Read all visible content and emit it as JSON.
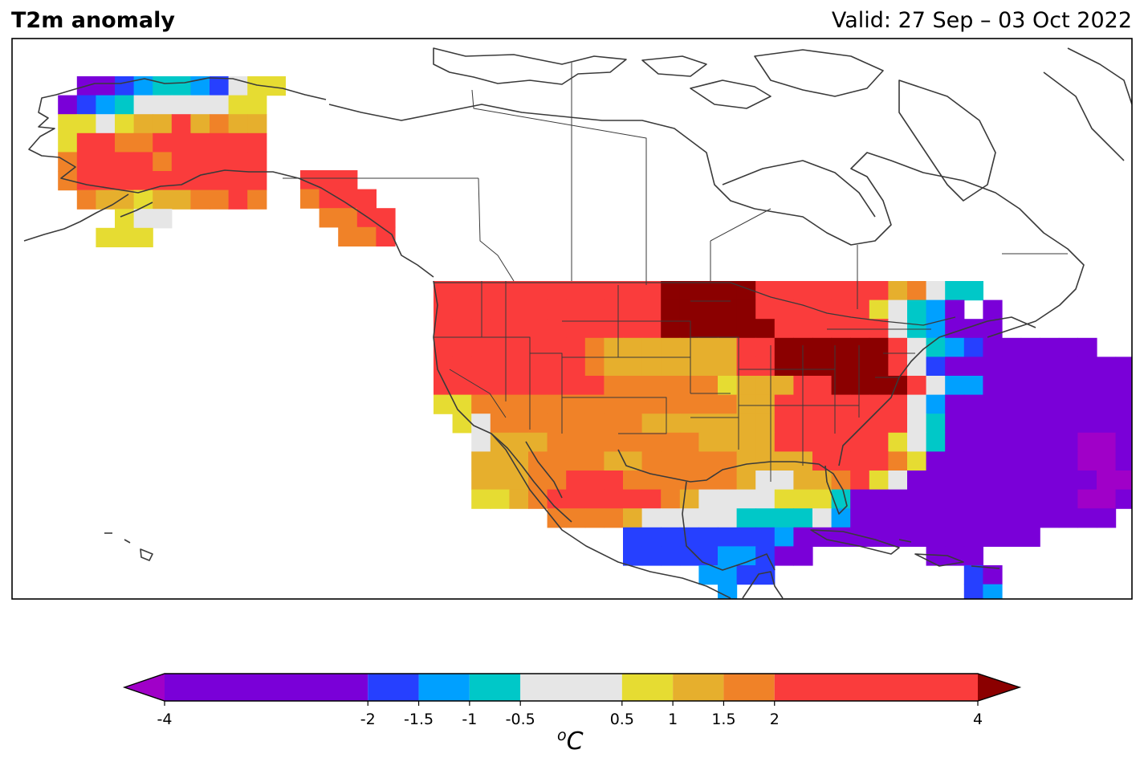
{
  "title": "T2m anomaly",
  "valid": "Valid: 27 Sep – 03 Oct 2022",
  "colorbar": {
    "levels": [
      "-4",
      "-2",
      "-1.5",
      "-1",
      "-0.5",
      "0.5",
      "1",
      "1.5",
      "2",
      "4"
    ],
    "colors": [
      "#7a00d8",
      "#2640ff",
      "#00a0ff",
      "#00c8c8",
      "#e6e6e6",
      "#e6dc32",
      "#e6af2d",
      "#f08228",
      "#fa3c3c"
    ],
    "under_color": "#a000c8",
    "over_color": "#8b0000",
    "unit_symbol": "o",
    "unit_letter": "C"
  },
  "colors": {
    "P": "#7a00d8",
    "M": "#a000c8",
    "B": "#2640ff",
    "L": "#00a0ff",
    "C": "#00c8c8",
    "G": "#e6e6e6",
    "Y": "#e6dc32",
    "O": "#e6af2d",
    "N": "#f08228",
    "R": "#fa3c3c",
    "D": "#8b0000"
  },
  "chart_data": {
    "type": "heatmap",
    "variable": "2m temperature anomaly",
    "units": "°C",
    "categories": [
      {
        "code": "M",
        "range": "< -4"
      },
      {
        "code": "P",
        "range": "-4 to -2"
      },
      {
        "code": "B",
        "range": "-2 to -1.5"
      },
      {
        "code": "L",
        "range": "-1.5 to -1"
      },
      {
        "code": "C",
        "range": "-1 to -0.5"
      },
      {
        "code": "G",
        "range": "-0.5 to 0.5"
      },
      {
        "code": "Y",
        "range": "0.5 to 1"
      },
      {
        "code": "O",
        "range": "1 to 1.5"
      },
      {
        "code": "N",
        "range": "1.5 to 2"
      },
      {
        "code": "R",
        "range": "2 to 4"
      },
      {
        "code": "D",
        "range": "> 4"
      }
    ],
    "regions": [
      {
        "name": "Alaska",
        "rows": [
          "...PPBLCCLBGYY",
          "..PBLCGGGGGYY",
          "..YYGYOORONOO",
          "..YRRNNRRRRRR",
          "..NRRRRNRRRRR",
          "..NRRRRRRRRRR",
          "...NOOYOONNRN",
          ".....YGG.....",
          "....YYY......"
        ]
      },
      {
        "name": "Alaska panhandle / British Columbia coast",
        "rows": [
          "RRR.",
          "NRRR",
          ".NNRR",
          "..NNR"
        ]
      },
      {
        "name": "Contiguous United States",
        "rows": [
          "RRRRRRRRRRRRDDDDDRRRRRRRONGCC........",
          "RRRRRRRRRRRRDDDDDRRRRRRYGCLP P.......",
          "RRRRRRRRRRRRDDDDDDRRRRRRGCLPPP........",
          "RRRRRRRRNOOOOOOORRDDDDDDRGCLBPPPPPP...",
          "RRRRRRRRNOOOOOOORRDDDDDDRGBPPPPPPPPPP",
          "RRRRRRRRRNNNNNNYOOORRDDDDRGLLPPPPPPPPPP",
          "YYNNNNNNNNNNNNNNOORRRRRRRGLPPPPPPPPPPP",
          ".YGNNNNNNNNOOOOOOORRRRRRRGCPPPPPPPPPPP",
          "..GOOONNNNNNNNOOOORRRRRRYGCPPPPPPPMMPP",
          "..OOONNNNOONNNNNOOOORRRRNYPPPPPPPPMMPP",
          "..OOONNRRRNNNNNNOGGOONRYGPPPPPPPPPPMMP",
          "..YYONRRRRRRNOGGGGYYYCPPPPPPPPPPPPMMP",
          "......NNNNOGGGGGCCCCGLPPPPPPPPPPPPPP",
          "..........BBBBBBBBLPPPPPPPPPPPPP.....",
          "..........BBBBBLLBPP......PPP.",
          "..............LLBB..........BP",
          "...............L............BL"
        ]
      }
    ]
  }
}
